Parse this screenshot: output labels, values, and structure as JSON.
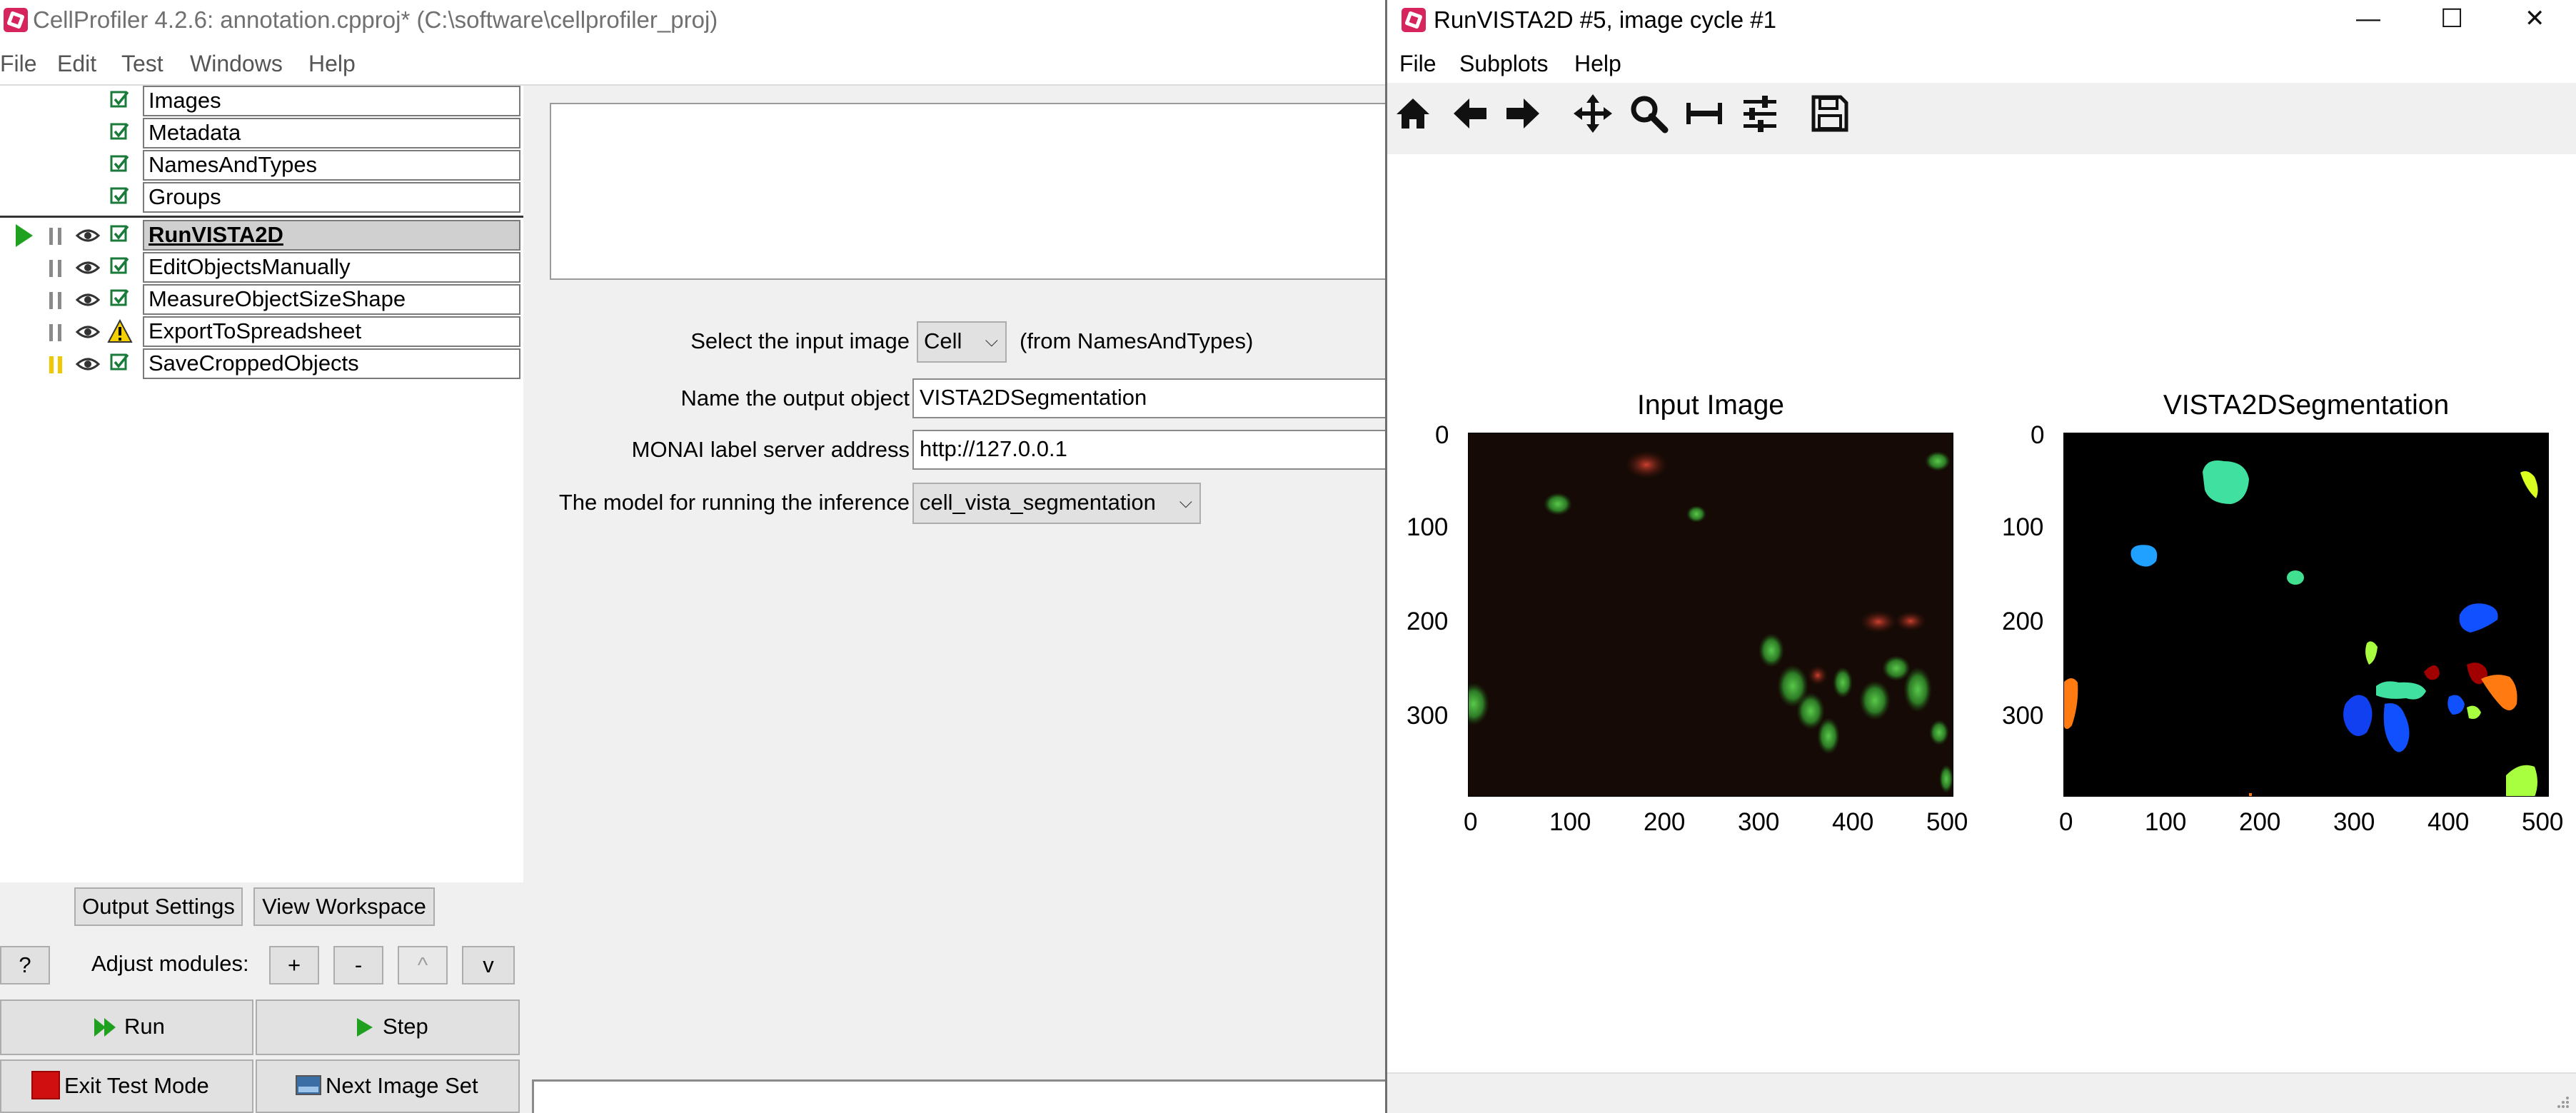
{
  "left_window": {
    "title": "CellProfiler 4.2.6: annotation.cpproj* (C:\\software\\cellprofiler_proj)",
    "menu": [
      "File",
      "Edit",
      "Test",
      "Windows",
      "Help"
    ]
  },
  "modules": [
    {
      "name": "Images",
      "status": "ok",
      "input_module": true
    },
    {
      "name": "Metadata",
      "status": "ok",
      "input_module": true
    },
    {
      "name": "NamesAndTypes",
      "status": "ok",
      "input_module": true
    },
    {
      "name": "Groups",
      "status": "ok",
      "input_module": true
    },
    {
      "name": "RunVISTA2D",
      "status": "ok",
      "active": true
    },
    {
      "name": "EditObjectsManually",
      "status": "ok"
    },
    {
      "name": "MeasureObjectSizeShape",
      "status": "ok"
    },
    {
      "name": "ExportToSpreadsheet",
      "status": "warning"
    },
    {
      "name": "SaveCroppedObjects",
      "status": "ok",
      "paused_yellow": true
    }
  ],
  "settings": {
    "input_image_label": "Select the input image",
    "input_image_value": "Cell",
    "input_image_source": "(from NamesAndTypes)",
    "output_object_label": "Name the output object",
    "output_object_value": "VISTA2DSegmentation",
    "server_label": "MONAI label server address",
    "server_value": "http://127.0.0.1",
    "model_label": "The model for running the inference",
    "model_value": "cell_vista_segmentation"
  },
  "buttons": {
    "output_settings": "Output Settings",
    "view_workspace": "View Workspace",
    "help": "?",
    "adjust_label": "Adjust modules:",
    "add": "+",
    "remove": "-",
    "up": "^",
    "down": "v",
    "run": "Run",
    "step": "Step",
    "exit_test": "Exit Test Mode",
    "next_image": "Next Image Set"
  },
  "figure_window": {
    "title": "RunVISTA2D #5, image cycle #1",
    "menu": [
      "File",
      "Subplots",
      "Help"
    ],
    "controls": {
      "minimize": "—",
      "maximize": "☐",
      "close": "✕"
    },
    "toolbar_icons": [
      "home-icon",
      "back-arrow-icon",
      "forward-arrow-icon",
      "pan-icon",
      "zoom-icon",
      "subplots-adjust-icon",
      "configure-icon",
      "save-icon"
    ]
  },
  "chart_data": [
    {
      "type": "image",
      "title": "Input Image",
      "x_ticks": [
        "0",
        "100",
        "200",
        "300",
        "400",
        "500"
      ],
      "y_ticks": [
        "0",
        "100",
        "200",
        "300"
      ],
      "xlim": [
        0,
        512
      ],
      "ylim": [
        384,
        0
      ],
      "colors": {
        "background": "#150a05",
        "cells_green": "#3fa33a",
        "cells_red": "#c0392b"
      }
    },
    {
      "type": "image",
      "title": "VISTA2DSegmentation",
      "x_ticks": [
        "0",
        "100",
        "200",
        "300",
        "400",
        "500"
      ],
      "y_ticks": [
        "0",
        "100",
        "200",
        "300"
      ],
      "xlim": [
        0,
        512
      ],
      "ylim": [
        384,
        0
      ],
      "colors": {
        "background": "#000000",
        "teal": "#40e0a0",
        "blue": "#1050ff",
        "darkblue": "#0000c0",
        "orange": "#ff7a10",
        "red": "#a00000",
        "yellow": "#d8ff20",
        "skyblue": "#20a0ff",
        "lime": "#a8ff40"
      }
    }
  ]
}
